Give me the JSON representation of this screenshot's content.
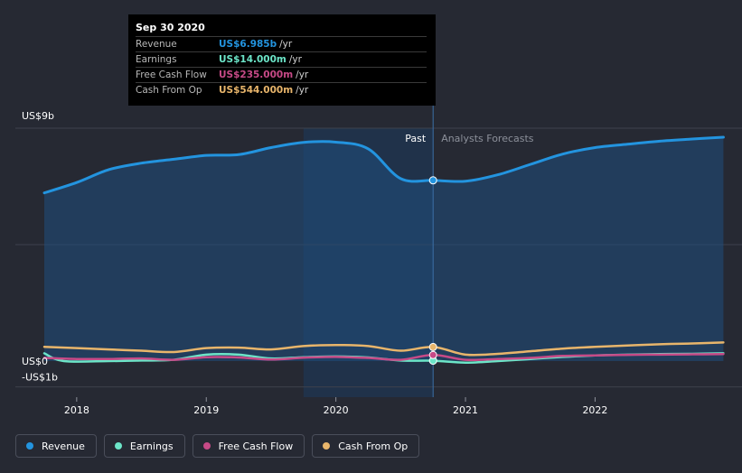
{
  "tooltip": {
    "date": "Sep 30 2020",
    "rows": [
      {
        "label": "Revenue",
        "value": "US$6.985b",
        "unit": "/yr",
        "color": "#2394df"
      },
      {
        "label": "Earnings",
        "value": "US$14.000m",
        "unit": "/yr",
        "color": "#6ce5c8"
      },
      {
        "label": "Free Cash Flow",
        "value": "US$235.000m",
        "unit": "/yr",
        "color": "#c74a87"
      },
      {
        "label": "Cash From Op",
        "value": "US$544.000m",
        "unit": "/yr",
        "color": "#e8b56b"
      }
    ]
  },
  "labels": {
    "past": "Past",
    "forecast": "Analysts Forecasts"
  },
  "legend": [
    {
      "label": "Revenue",
      "color": "#2394df"
    },
    {
      "label": "Earnings",
      "color": "#6ce5c8"
    },
    {
      "label": "Free Cash Flow",
      "color": "#c74a87"
    },
    {
      "label": "Cash From Op",
      "color": "#e8b56b"
    }
  ],
  "chart_data": {
    "type": "line",
    "ylim": [
      -1,
      9
    ],
    "y_ticks": [
      {
        "label": "US$9b",
        "value": 9
      },
      {
        "label": "US$0",
        "value": 0
      },
      {
        "label": "-US$1b",
        "value": -1
      }
    ],
    "x_ticks": [
      "2018",
      "2019",
      "2020",
      "2021",
      "2022"
    ],
    "x_tick_values": [
      2018,
      2019,
      2020,
      2021,
      2022
    ],
    "xlim": [
      2017.5,
      2022.99
    ],
    "highlight_start": 2019.75,
    "divider": 2020.75,
    "series": [
      {
        "name": "Revenue",
        "color": "#2394df",
        "fill": true,
        "points": [
          [
            2017.75,
            6.5
          ],
          [
            2018.0,
            6.9
          ],
          [
            2018.25,
            7.4
          ],
          [
            2018.5,
            7.65
          ],
          [
            2018.75,
            7.8
          ],
          [
            2019.0,
            7.95
          ],
          [
            2019.25,
            7.98
          ],
          [
            2019.5,
            8.25
          ],
          [
            2019.75,
            8.45
          ],
          [
            2020.0,
            8.46
          ],
          [
            2020.25,
            8.2
          ],
          [
            2020.5,
            7.05
          ],
          [
            2020.75,
            6.985
          ],
          [
            2021.0,
            6.95
          ],
          [
            2021.25,
            7.2
          ],
          [
            2021.5,
            7.6
          ],
          [
            2021.75,
            8.0
          ],
          [
            2022.0,
            8.25
          ],
          [
            2022.25,
            8.38
          ],
          [
            2022.5,
            8.5
          ],
          [
            2022.75,
            8.58
          ],
          [
            2022.99,
            8.65
          ]
        ]
      },
      {
        "name": "Earnings",
        "color": "#6ce5c8",
        "fill": false,
        "points": [
          [
            2017.75,
            0.3
          ],
          [
            2017.9,
            0.0
          ],
          [
            2018.25,
            0.0
          ],
          [
            2018.5,
            0.02
          ],
          [
            2018.75,
            0.05
          ],
          [
            2019.0,
            0.25
          ],
          [
            2019.25,
            0.25
          ],
          [
            2019.5,
            0.1
          ],
          [
            2019.75,
            0.15
          ],
          [
            2020.0,
            0.18
          ],
          [
            2020.25,
            0.14
          ],
          [
            2020.5,
            0.02
          ],
          [
            2020.75,
            0.014
          ],
          [
            2021.0,
            -0.06
          ],
          [
            2021.25,
            0.0
          ],
          [
            2021.5,
            0.08
          ],
          [
            2021.75,
            0.16
          ],
          [
            2022.0,
            0.22
          ],
          [
            2022.25,
            0.25
          ],
          [
            2022.5,
            0.27
          ],
          [
            2022.75,
            0.28
          ],
          [
            2022.99,
            0.3
          ]
        ]
      },
      {
        "name": "Free Cash Flow",
        "color": "#c74a87",
        "fill": false,
        "points": [
          [
            2017.75,
            0.12
          ],
          [
            2018.0,
            0.08
          ],
          [
            2018.25,
            0.08
          ],
          [
            2018.5,
            0.1
          ],
          [
            2018.75,
            0.05
          ],
          [
            2019.0,
            0.15
          ],
          [
            2019.25,
            0.14
          ],
          [
            2019.5,
            0.06
          ],
          [
            2019.75,
            0.13
          ],
          [
            2020.0,
            0.16
          ],
          [
            2020.25,
            0.12
          ],
          [
            2020.5,
            0.05
          ],
          [
            2020.75,
            0.235
          ],
          [
            2021.0,
            0.05
          ],
          [
            2021.25,
            0.08
          ],
          [
            2021.5,
            0.12
          ],
          [
            2021.75,
            0.2
          ],
          [
            2022.0,
            0.22
          ],
          [
            2022.25,
            0.24
          ],
          [
            2022.5,
            0.25
          ],
          [
            2022.75,
            0.26
          ],
          [
            2022.99,
            0.27
          ]
        ]
      },
      {
        "name": "Cash From Op",
        "color": "#e8b56b",
        "fill": false,
        "points": [
          [
            2017.75,
            0.55
          ],
          [
            2018.0,
            0.5
          ],
          [
            2018.25,
            0.45
          ],
          [
            2018.5,
            0.4
          ],
          [
            2018.75,
            0.35
          ],
          [
            2019.0,
            0.5
          ],
          [
            2019.25,
            0.52
          ],
          [
            2019.5,
            0.45
          ],
          [
            2019.75,
            0.58
          ],
          [
            2020.0,
            0.62
          ],
          [
            2020.25,
            0.58
          ],
          [
            2020.5,
            0.4
          ],
          [
            2020.75,
            0.544
          ],
          [
            2021.0,
            0.25
          ],
          [
            2021.25,
            0.28
          ],
          [
            2021.5,
            0.38
          ],
          [
            2021.75,
            0.48
          ],
          [
            2022.0,
            0.55
          ],
          [
            2022.25,
            0.6
          ],
          [
            2022.5,
            0.65
          ],
          [
            2022.75,
            0.68
          ],
          [
            2022.99,
            0.72
          ]
        ]
      }
    ]
  }
}
